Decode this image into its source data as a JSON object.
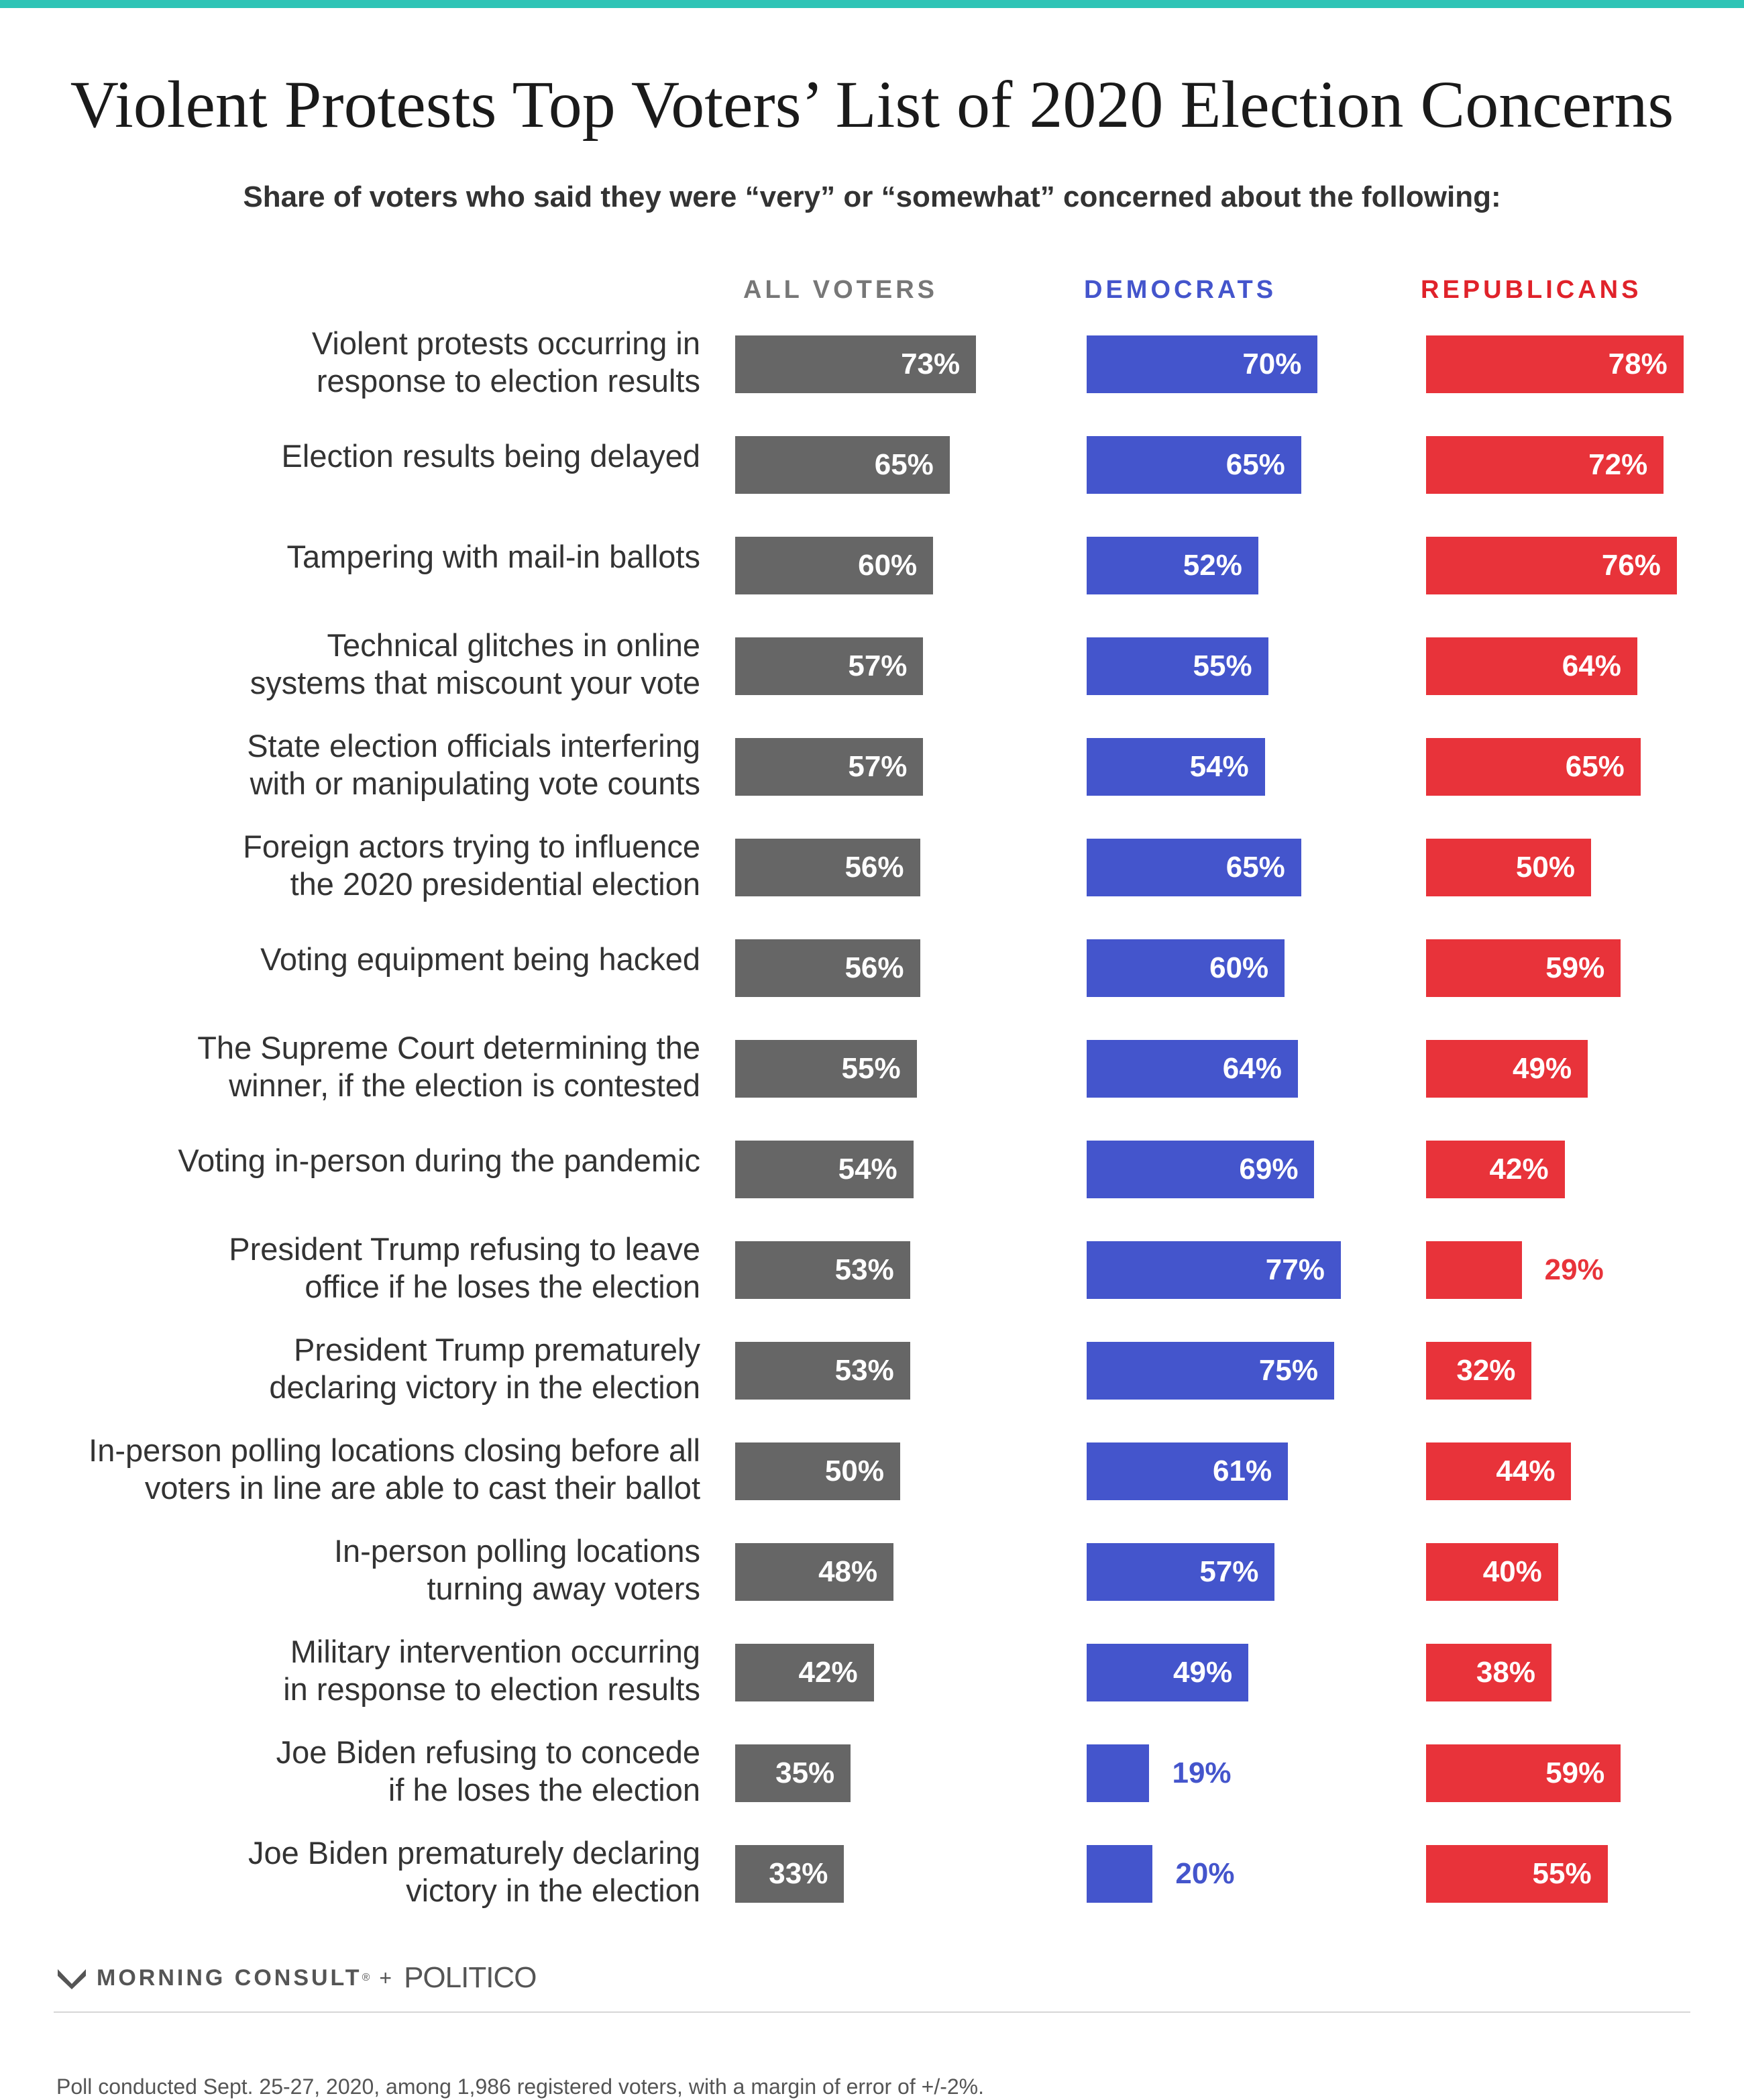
{
  "header": {
    "title": "Violent Protests Top Voters’ List of 2020 Election Concerns",
    "subtitle": "Share of voters who said they were “very” or “somewhat” concerned about the following:"
  },
  "colors": {
    "accent_rule": "#2ec4b6",
    "all_voters": "#666666",
    "democrats": "#4455cc",
    "republicans": "#e8333a",
    "label_on_bar": "#ffffff"
  },
  "chart_data": {
    "type": "bar",
    "orientation": "horizontal",
    "grid": false,
    "legend": "column headers",
    "value_unit": "%",
    "xlim": [
      0,
      100
    ],
    "categories": [
      "Violent protests occurring in\nresponse to election results",
      "Election results being delayed",
      "Tampering with mail-in ballots",
      "Technical glitches in online\nsystems that miscount your vote",
      "State election officials interfering\nwith or manipulating vote counts",
      "Foreign actors trying to influence\nthe 2020 presidential election",
      "Voting equipment being hacked",
      "The Supreme Court determining the\nwinner, if the election is contested",
      "Voting in-person during the pandemic",
      "President Trump refusing to leave\noffice if he loses the election",
      "President Trump prematurely\ndeclaring victory in the election",
      "In-person polling locations closing before all\nvoters in line are able to cast their ballot",
      "In-person polling locations\nturning away voters",
      "Military intervention occurring\nin response to election results",
      "Joe Biden refusing to concede\nif he loses the election",
      "Joe Biden prematurely declaring\nvictory in the election"
    ],
    "series": [
      {
        "name": "ALL VOTERS",
        "color": "#666666",
        "header_color": "#777777",
        "values": [
          73,
          65,
          60,
          57,
          57,
          56,
          56,
          55,
          54,
          53,
          53,
          50,
          48,
          42,
          35,
          33
        ],
        "labels": [
          "73%",
          "65%",
          "60%",
          "57%",
          "57%",
          "56%",
          "56%",
          "55%",
          "54%",
          "53%",
          "53%",
          "50%",
          "48%",
          "42%",
          "35%",
          "33%"
        ]
      },
      {
        "name": "DEMOCRATS",
        "color": "#4455cc",
        "header_color": "#4455cc",
        "values": [
          70,
          65,
          52,
          55,
          54,
          65,
          60,
          64,
          69,
          77,
          75,
          61,
          57,
          49,
          19,
          20
        ],
        "labels": [
          "70%",
          "65%",
          "52%",
          "55%",
          "54%",
          "65%",
          "60%",
          "64%",
          "69%",
          "77%",
          "75%",
          "61%",
          "57%",
          "49%",
          "19%",
          "20%"
        ]
      },
      {
        "name": "REPUBLICANS",
        "color": "#e8333a",
        "header_color": "#e0222a",
        "values": [
          78,
          72,
          76,
          64,
          65,
          50,
          59,
          49,
          42,
          29,
          32,
          44,
          40,
          38,
          59,
          55
        ],
        "labels": [
          "78%",
          "72%",
          "76%",
          "64%",
          "65%",
          "50%",
          "59%",
          "49%",
          "42%",
          "29%",
          "32%",
          "44%",
          "40%",
          "38%",
          "59%",
          "55%"
        ]
      }
    ]
  },
  "footer": {
    "logo_icon": "morning-consult-m-icon",
    "morning_consult": "MORNING CONSULT",
    "registered_mark": "®",
    "plus": "+",
    "politico": "POLITICO",
    "note": "Poll conducted Sept. 25-27, 2020, among 1,986 registered voters, with a margin of error of +/-2%."
  }
}
